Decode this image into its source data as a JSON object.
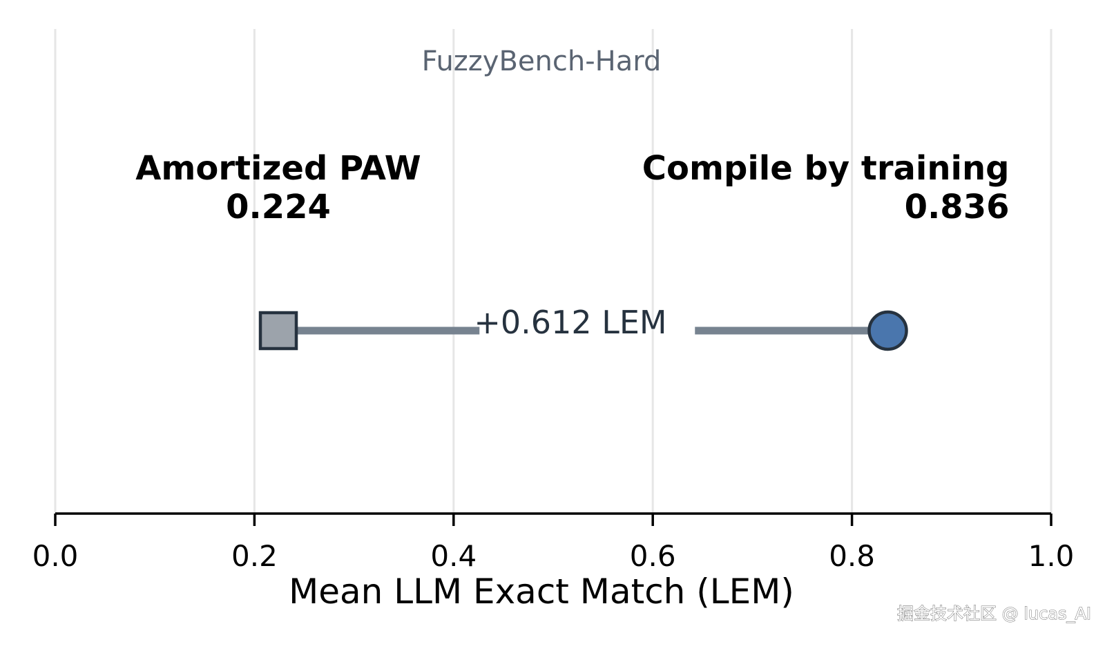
{
  "chart_data": {
    "type": "scatter",
    "subtitle": "FuzzyBench-Hard",
    "xlabel": "Mean LLM Exact Match (LEM)",
    "xlim": [
      0.0,
      1.0
    ],
    "ticks": [
      {
        "value": 0.0,
        "label": "0.0"
      },
      {
        "value": 0.2,
        "label": "0.2"
      },
      {
        "value": 0.4,
        "label": "0.4"
      },
      {
        "value": 0.6,
        "label": "0.6"
      },
      {
        "value": 0.8,
        "label": "0.8"
      },
      {
        "value": 1.0,
        "label": "1.0"
      }
    ],
    "grid": true,
    "points": [
      {
        "name": "Amortized PAW",
        "value": 0.224,
        "value_label": "0.224",
        "marker": "square",
        "color": "#9ca3ab"
      },
      {
        "name": "Compile by training",
        "value": 0.836,
        "value_label": "0.836",
        "marker": "circle",
        "color": "#4a76ad"
      }
    ],
    "difference_label": "+0.612 LEM",
    "colors": {
      "connector": "#778390",
      "marker_edge": "#26323f",
      "grid": "#e6e6e6",
      "subtitle": "#5a6472"
    }
  },
  "watermark": "掘金技术社区 @ lucas_AI"
}
